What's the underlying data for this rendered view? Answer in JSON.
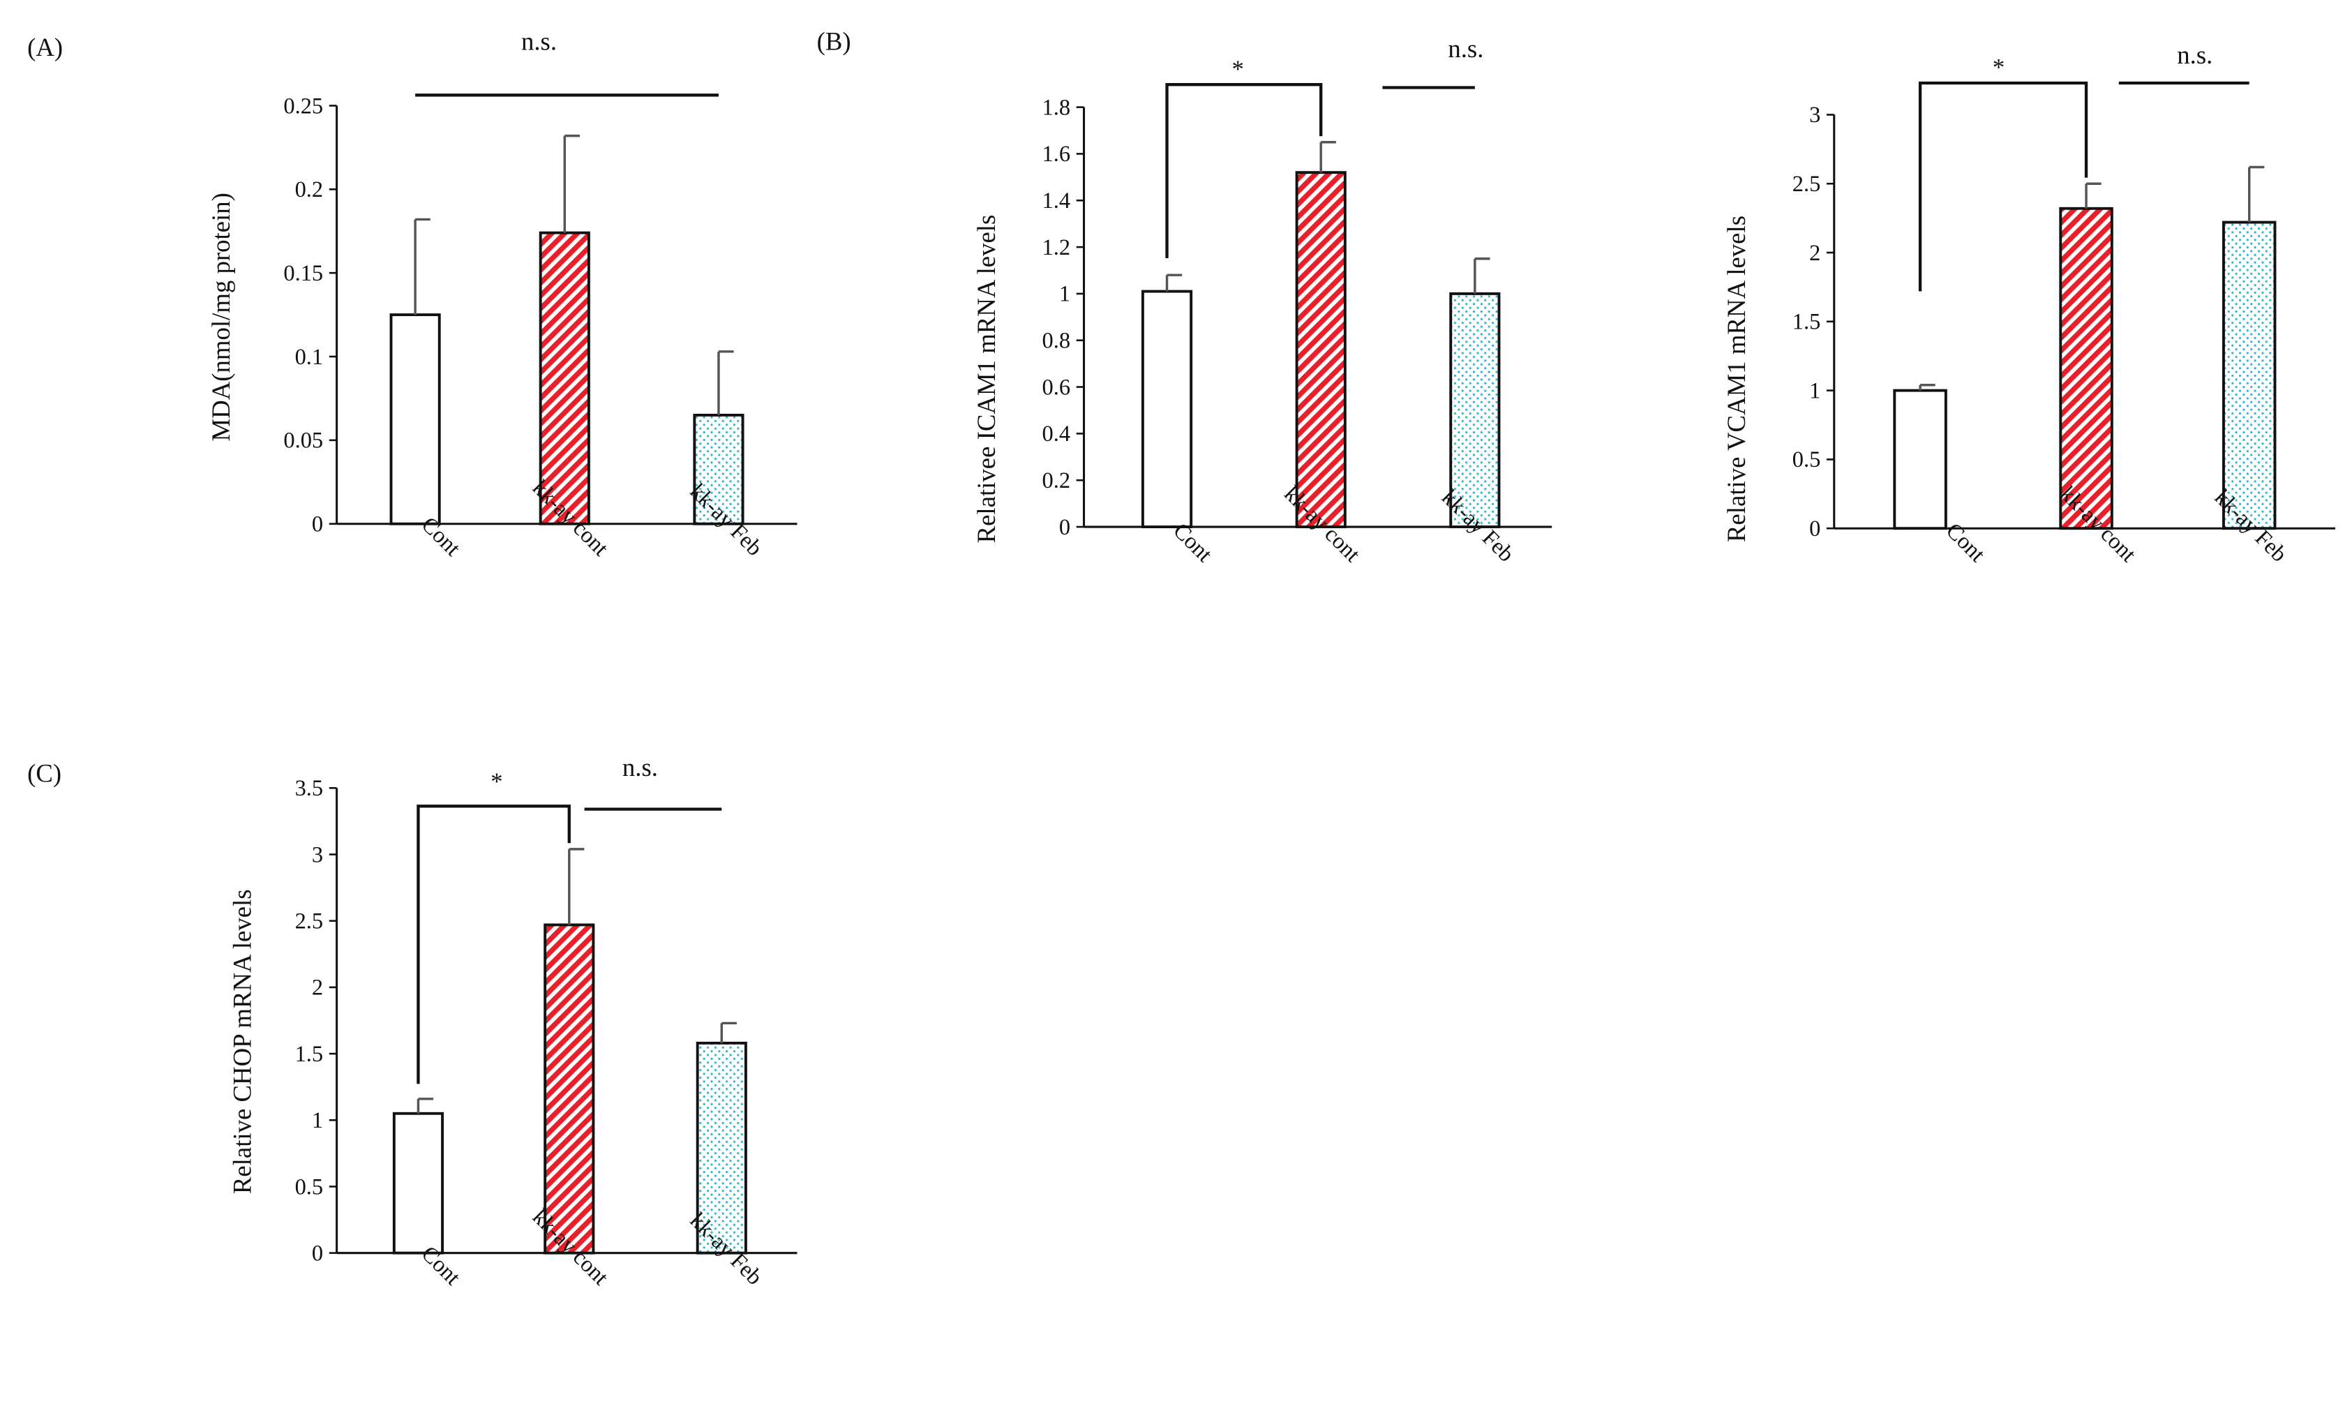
{
  "colors": {
    "axis": "#111111",
    "cont_fill": "#ffffff",
    "kkay_cont_stripe": "#e8202a",
    "kkay_feb_dot": "#35b7cf",
    "error_bar": "#555555"
  },
  "chart_data": [
    {
      "panel": "(A)",
      "type": "bar",
      "title": "",
      "xlabel": "",
      "ylabel": "MDA(nmol/mg protein)",
      "ylim": [
        0,
        0.25
      ],
      "yticks": [
        0,
        0.05,
        0.1,
        0.15,
        0.2,
        0.25
      ],
      "ytick_labels": [
        "0",
        "0.05",
        "0.1",
        "0.15",
        "0.2",
        "0.25"
      ],
      "categories": [
        "Cont",
        "kk-ay cont",
        "kk-ay Feb"
      ],
      "values": [
        0.125,
        0.174,
        0.065
      ],
      "errors": [
        0.057,
        0.058,
        0.038
      ],
      "patterns": [
        "plain",
        "stripe",
        "dot"
      ],
      "annotations": [
        {
          "type": "bar",
          "from": 0,
          "to": 2,
          "label": "n.s."
        }
      ]
    },
    {
      "panel": "(B)",
      "type": "bar",
      "title": "",
      "xlabel": "",
      "ylabel": "Relativee ICAM1 mRNA levels",
      "ylim": [
        0,
        1.8
      ],
      "yticks": [
        0,
        0.2,
        0.4,
        0.6,
        0.8,
        1,
        1.2,
        1.4,
        1.6,
        1.8
      ],
      "ytick_labels": [
        "0",
        "0.2",
        "0.4",
        "0.6",
        "0.8",
        "1",
        "1.2",
        "1.4",
        "1.6",
        "1.8"
      ],
      "categories": [
        "Cont",
        "kk-ay cont",
        "kk-ay Feb"
      ],
      "values": [
        1.01,
        1.52,
        1.0
      ],
      "errors": [
        0.07,
        0.13,
        0.15
      ],
      "patterns": [
        "plain",
        "stripe",
        "dot"
      ],
      "annotations": [
        {
          "type": "bracket",
          "from": 0,
          "to": 1,
          "label": "*"
        },
        {
          "type": "bar",
          "from": 1.4,
          "to": 2.3,
          "label": "n.s."
        }
      ]
    },
    {
      "panel": "",
      "type": "bar",
      "title": "",
      "xlabel": "",
      "ylabel": "Relative VCAM1 mRNA levels",
      "ylim": [
        0,
        3
      ],
      "yticks": [
        0,
        0.5,
        1,
        1.5,
        2,
        2.5,
        3
      ],
      "ytick_labels": [
        "0",
        "0.5",
        "1",
        "1.5",
        "2",
        "2.5",
        "3"
      ],
      "categories": [
        "Cont",
        "kk-ay cont",
        "kk-ay Feb"
      ],
      "values": [
        1.0,
        2.32,
        2.22
      ],
      "errors": [
        0.04,
        0.18,
        0.4
      ],
      "patterns": [
        "plain",
        "stripe",
        "dot"
      ],
      "annotations": [
        {
          "type": "bracket",
          "from": 0,
          "to": 1,
          "label": "*"
        },
        {
          "type": "bar",
          "from": 1.2,
          "to": 2.0,
          "label": "n.s."
        }
      ]
    },
    {
      "panel": "(C)",
      "type": "bar",
      "title": "",
      "xlabel": "",
      "ylabel": "Relative CHOP mRNA levels",
      "ylim": [
        0,
        3.5
      ],
      "yticks": [
        0,
        0.5,
        1,
        1.5,
        2,
        2.5,
        3,
        3.5
      ],
      "ytick_labels": [
        "0",
        "0.5",
        "1",
        "1.5",
        "2",
        "2.5",
        "3",
        "3.5"
      ],
      "categories": [
        "Cont",
        "kk-ay cont",
        "kk-ay Feb"
      ],
      "values": [
        1.05,
        2.47,
        1.58
      ],
      "errors": [
        0.11,
        0.57,
        0.15
      ],
      "patterns": [
        "plain",
        "stripe",
        "dot"
      ],
      "annotations": [
        {
          "type": "bracket",
          "from": 0,
          "to": 1,
          "label": "*"
        },
        {
          "type": "bar",
          "from": 1.1,
          "to": 2.1,
          "label": "n.s."
        }
      ]
    }
  ]
}
